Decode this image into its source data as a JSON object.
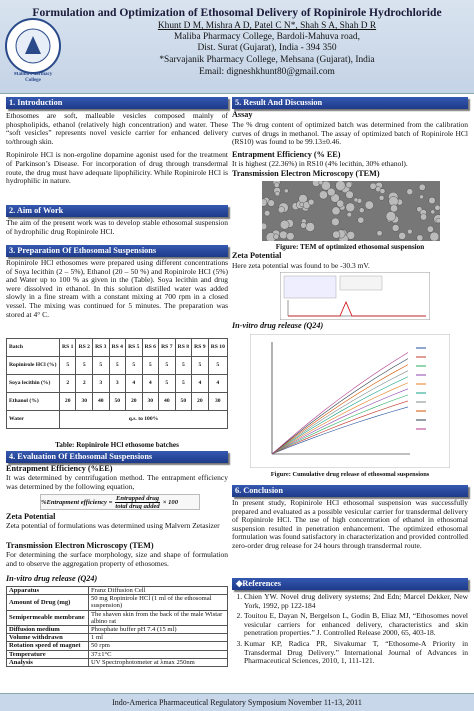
{
  "header": {
    "title": "Formulation and Optimization of Ethosomal Delivery of Ropinirole Hydrochloride",
    "authors": "Khunt D M, Mishra A D, Patel C N*, Shah S A, Shah D R",
    "lines": [
      "Maliba Pharmacy College, Bardoli-Mahuva road,",
      "Dist. Surat (Gujarat), India - 394 350",
      "*Sarvajanik Pharmacy College, Mehsana (Gujarat), India",
      "Email: digneshkhunt80@gmail.com"
    ],
    "logo": "Maliba Pharmacy College"
  },
  "introduction": {
    "heading": "1. Introduction",
    "paragraphs": [
      "Ethosomes are soft, malleable vesicles composed mainly of phospholipids, ethanol (relatively high concentration) and water. These “soft vesicles” represents novel vesicle carrier for enhanced delivery to/through skin.",
      "Ropinirole HCl is non-ergoline dopamine agonist used for the treatment of Parkinson’s Disease. For incorporation of drug through transdermal route, the drug must have adequate lipophilicity. While Ropinirole HCl is hydrophilic in nature."
    ]
  },
  "aim": {
    "heading": "2. Aim of  Work",
    "text": "The aim of the present work was to develop stable ethosomal suspension of hydrophilic drug Ropinirole HCl."
  },
  "preparation": {
    "heading": "3. Preparation Of  Ethosomal Suspensions",
    "text": "Ropinirole HCl ethosomes were prepared using different concentrations of Soya lecithin (2 – 5%), Ethanol (20 – 50 %) and Ropinirole HCl (5%) and Water up to 100 % as given in the (Table). Soya lecithin and drug were dissolved in ethanol. In this solution distilled water was added slowly in a fine stream with a constant mixing at 700 rpm in a closed vessel. The mixing was continued for 5 minutes. The preparation was stored at 4° C.",
    "table": {
      "header": [
        "Batch",
        "RS 1",
        "RS 2",
        "RS 3",
        "RS 4",
        "RS 5",
        "RS 6",
        "RS 7",
        "RS 8",
        "RS 9",
        "RS 10"
      ],
      "rows": [
        [
          "Ropinirole HCl (%)",
          "5",
          "5",
          "5",
          "5",
          "5",
          "5",
          "5",
          "5",
          "5",
          "5"
        ],
        [
          "Soya lecithin (%)",
          "2",
          "2",
          "3",
          "3",
          "4",
          "4",
          "5",
          "5",
          "4",
          "4"
        ],
        [
          "Ethanol (%)",
          "20",
          "30",
          "40",
          "50",
          "20",
          "30",
          "40",
          "50",
          "20",
          "30"
        ]
      ],
      "water": [
        "Water",
        "q.s. to 100%"
      ]
    },
    "caption": "Table: Ropinirole HCl ethosome batches"
  },
  "evaluation": {
    "heading": "4. Evaluation Of Ethosomal Suspensions",
    "ee_title": "Entrapment Efficiency (%EE)",
    "ee_text": "It was determined by centrifugation method. The entrapment efficiency was determined by the following equation,",
    "formula": {
      "lhs": "%Entrapment efficiency =",
      "num": "Entrapped drug",
      "den": "total drug added",
      "mult": "× 100"
    },
    "zeta_title": "Zeta Potential",
    "zeta_text": "Zeta potential of formulations was determined using Malvern Zetasizer",
    "tem_title": "Transmission Electron Microscopy (TEM)",
    "tem_text": "For determining the surface morphology, size and shape of formulation and to observe the aggregation property of ethosomes.",
    "release_title": "In-vitro drug release (Q24)",
    "table": [
      [
        "Apparatus",
        "Franz Diffusion Cell"
      ],
      [
        "Amount of Drug (mg)",
        "50 mg Ropinirole HCl (1 ml of the ethosomal suspension)"
      ],
      [
        "Semipermeable membrane",
        "The shaven skin from the back of the male Wistar albino rat"
      ],
      [
        "Diffusion medium",
        "Phosphate buffer pH 7.4 (15 ml)"
      ],
      [
        "Volume withdrawn",
        "1 ml"
      ],
      [
        "Rotation speed of magnet",
        "50 rpm"
      ],
      [
        "Temperature",
        "37±1°C"
      ],
      [
        "Analysis",
        "UV Spectrophotometer at λmax 250nm"
      ]
    ]
  },
  "results": {
    "heading": "5. Result And Discussion",
    "assay_title": "Assay",
    "assay_text": "The % drug content of optimized batch was determined from the calibration curves of drugs in methanol. The assay of optimized batch of Ropinirole HCl (RS10) was found to be 99.13±0.46.",
    "ee_title": "Entrapment Efficiency (% EE)",
    "ee_text": "It is highest (22.36%) in RS10 (4% lecithin, 30% ethanol).",
    "tem_title": "Transmission Electron Microscopy (TEM)",
    "tem_caption": "Figure: TEM of optimized ethosomal suspension",
    "zeta_title": "Zeta Potential",
    "zeta_text": "Here zeta potential was found to be -30.3 mV.",
    "release_title": "In-vitro drug release (Q24)",
    "release_caption": "Figure: Cumulative drug release of ethosomal suspensions"
  },
  "conclusion": {
    "heading": "6. Conclusion",
    "text": "In present study, Ropinirole HCl ethosomal suspension was successfully prepared and evaluated as a possible vesicular carrier for transdermal delivery of Ropinirole HCl. The use of high concentration of ethanol in ethosomal suspension resulted in penetration enhancement. The optimized ethosomal formulation was found satisfactory in characterization and provided controlled zero-order drug release for 24 hours through transdermal route."
  },
  "references": {
    "heading": "References",
    "items": [
      "Chien YW. Novel drug delivery systems; 2nd Edn; Marcel Dekker, New York, 1992, pp 122-184",
      "Touitou E, Dayan N, Bergelson L, Godin B, Eliaz MJ, “Ethosomes novel vesicular carriers for enhanced delivery, characteristics and skin penetration properties.” J. Controlled Release 2000, 65, 403-18.",
      "Kumar KP, Radica PR, Sivakumar T, “Ethosome-A Priority in Transdermal Drug Delivery.” International Journal of Advances in Pharmaceutical Sciences, 2010, 1, 111-121."
    ]
  },
  "footer": "Indo-America Pharmaceutical Regulatory Symposium November 11-13, 2011"
}
